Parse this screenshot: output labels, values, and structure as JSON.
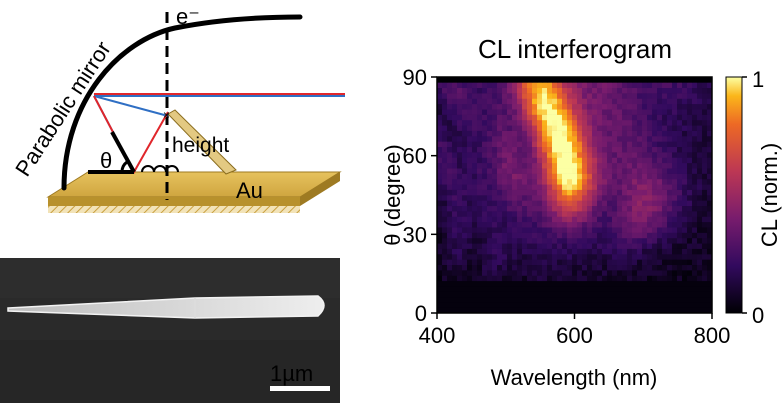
{
  "schematic": {
    "electron_label": "e⁻",
    "mirror_label": "Parabolic mirror",
    "angle_label": "θ",
    "height_label": "height",
    "substrate_label": "Au"
  },
  "sem": {
    "scale_bar_label": "1µm"
  },
  "chart_data": {
    "type": "heatmap",
    "title": "CL interferogram",
    "xlabel": "Wavelength (nm)",
    "ylabel": "θ (degree)",
    "x_ticks": [
      "400",
      "600",
      "800"
    ],
    "y_ticks": [
      "0",
      "30",
      "60",
      "90"
    ],
    "xlim": [
      400,
      800
    ],
    "ylim": [
      0,
      90
    ],
    "colorbar": {
      "label": "CL (norm.)",
      "ticks": [
        "0",
        "1"
      ],
      "range": [
        0,
        1
      ],
      "colormap": "inferno"
    },
    "dark_band_below_deg": 12
  },
  "colors": {
    "mirror": "#000000",
    "beam_blue": "#2f6fc4",
    "beam_red": "#e0262b",
    "gold": "#d8b24a",
    "gold_dark": "#b8912c",
    "sem_background": "#2a2a2a"
  }
}
